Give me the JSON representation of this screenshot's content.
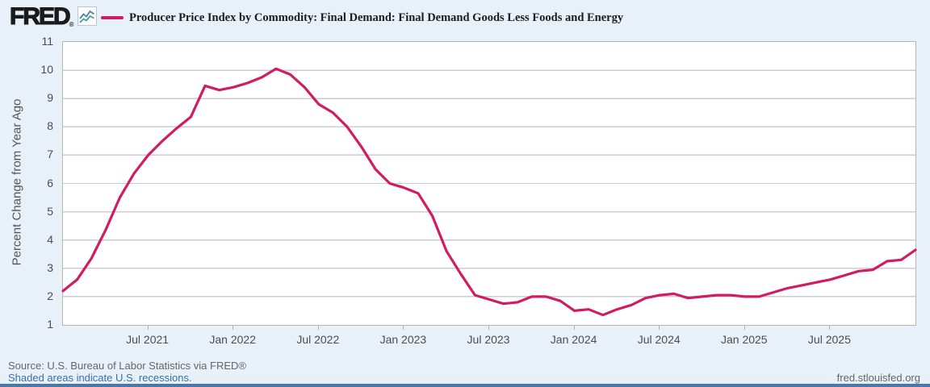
{
  "header": {
    "logo_text": "FRED",
    "registered_mark": "®"
  },
  "chart_data": {
    "type": "line",
    "title": "Producer Price Index by Commodity: Final Demand: Final Demand Goods Less Foods and Energy",
    "ylabel": "Percent Change from Year Ago",
    "xlabel": "",
    "ylim": [
      1,
      11
    ],
    "yticks": [
      1,
      2,
      3,
      4,
      5,
      6,
      7,
      8,
      9,
      10,
      11
    ],
    "grid": true,
    "legend_position": "top-left",
    "x_range": {
      "start_month": "2021-01",
      "end_month": "2026-01",
      "months": 61
    },
    "xticks": [
      {
        "label": "Jul 2021",
        "month_index": 6
      },
      {
        "label": "Jan 2022",
        "month_index": 12
      },
      {
        "label": "Jul 2022",
        "month_index": 18
      },
      {
        "label": "Jan 2023",
        "month_index": 24
      },
      {
        "label": "Jul 2023",
        "month_index": 30
      },
      {
        "label": "Jan 2024",
        "month_index": 36
      },
      {
        "label": "Jul 2024",
        "month_index": 42
      },
      {
        "label": "Jan 2025",
        "month_index": 48
      },
      {
        "label": "Jul 2025",
        "month_index": 54
      }
    ],
    "series": [
      {
        "name": "Producer Price Index by Commodity: Final Demand: Final Demand Goods Less Foods and Energy",
        "color": "#d01c63",
        "values": [
          2.2,
          2.6,
          3.35,
          4.35,
          5.5,
          6.35,
          7.0,
          7.5,
          7.95,
          8.35,
          9.45,
          9.3,
          9.4,
          9.55,
          9.75,
          10.05,
          9.85,
          9.4,
          8.8,
          8.5,
          8.0,
          7.3,
          6.5,
          6.0,
          5.85,
          5.65,
          4.85,
          3.6,
          2.8,
          2.05,
          1.9,
          1.75,
          1.8,
          2.0,
          2.0,
          1.85,
          1.5,
          1.55,
          1.35,
          1.55,
          1.7,
          1.95,
          2.05,
          2.1,
          1.95,
          2.0,
          2.05,
          2.05,
          2.0,
          2.0,
          2.15,
          2.3,
          2.4,
          2.5,
          2.6,
          2.75,
          2.9,
          2.95,
          3.25,
          3.3,
          3.65
        ]
      }
    ]
  },
  "footer": {
    "source": "Source: U.S. Bureau of Labor Statistics via FRED®",
    "recession_note": "Shaded areas indicate U.S. recessions.",
    "site": "fred.stlouisfed.org"
  },
  "colors": {
    "background": "#e8f1f9",
    "plot_background": "#ffffff",
    "line": "#d01c63",
    "grid": "#cdcdcd",
    "plot_border": "#b5b5b5",
    "axis_text": "#4d4d4d",
    "source_text": "#666666",
    "link_text": "#3a6fa5",
    "bottom_bar": "#4a78a8",
    "logo_icon_blue": "#4a7cb5",
    "logo_icon_teal": "#42a287"
  }
}
